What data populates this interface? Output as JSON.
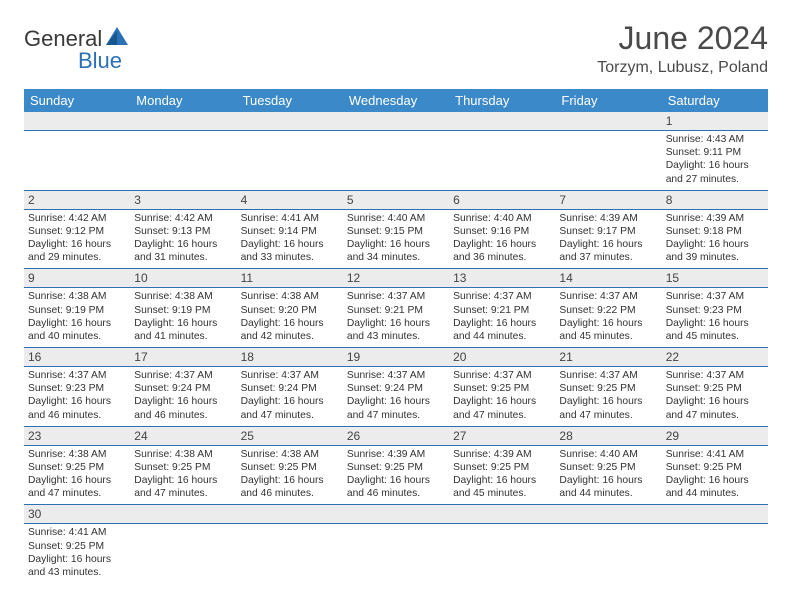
{
  "logo": {
    "part1": "General",
    "part2": "Blue"
  },
  "title": "June 2024",
  "location": "Torzym, Lubusz, Poland",
  "colors": {
    "header_bg": "#3b89c9",
    "header_text": "#ffffff",
    "daynum_bg": "#ececec",
    "row_divider": "#2a71b8",
    "accent": "#2a71b8",
    "text": "#333333"
  },
  "daynames": [
    "Sunday",
    "Monday",
    "Tuesday",
    "Wednesday",
    "Thursday",
    "Friday",
    "Saturday"
  ],
  "weeks": [
    [
      {
        "num": "",
        "lines": []
      },
      {
        "num": "",
        "lines": []
      },
      {
        "num": "",
        "lines": []
      },
      {
        "num": "",
        "lines": []
      },
      {
        "num": "",
        "lines": []
      },
      {
        "num": "",
        "lines": []
      },
      {
        "num": "1",
        "lines": [
          "Sunrise: 4:43 AM",
          "Sunset: 9:11 PM",
          "Daylight: 16 hours",
          "and 27 minutes."
        ]
      }
    ],
    [
      {
        "num": "2",
        "lines": [
          "Sunrise: 4:42 AM",
          "Sunset: 9:12 PM",
          "Daylight: 16 hours",
          "and 29 minutes."
        ]
      },
      {
        "num": "3",
        "lines": [
          "Sunrise: 4:42 AM",
          "Sunset: 9:13 PM",
          "Daylight: 16 hours",
          "and 31 minutes."
        ]
      },
      {
        "num": "4",
        "lines": [
          "Sunrise: 4:41 AM",
          "Sunset: 9:14 PM",
          "Daylight: 16 hours",
          "and 33 minutes."
        ]
      },
      {
        "num": "5",
        "lines": [
          "Sunrise: 4:40 AM",
          "Sunset: 9:15 PM",
          "Daylight: 16 hours",
          "and 34 minutes."
        ]
      },
      {
        "num": "6",
        "lines": [
          "Sunrise: 4:40 AM",
          "Sunset: 9:16 PM",
          "Daylight: 16 hours",
          "and 36 minutes."
        ]
      },
      {
        "num": "7",
        "lines": [
          "Sunrise: 4:39 AM",
          "Sunset: 9:17 PM",
          "Daylight: 16 hours",
          "and 37 minutes."
        ]
      },
      {
        "num": "8",
        "lines": [
          "Sunrise: 4:39 AM",
          "Sunset: 9:18 PM",
          "Daylight: 16 hours",
          "and 39 minutes."
        ]
      }
    ],
    [
      {
        "num": "9",
        "lines": [
          "Sunrise: 4:38 AM",
          "Sunset: 9:19 PM",
          "Daylight: 16 hours",
          "and 40 minutes."
        ]
      },
      {
        "num": "10",
        "lines": [
          "Sunrise: 4:38 AM",
          "Sunset: 9:19 PM",
          "Daylight: 16 hours",
          "and 41 minutes."
        ]
      },
      {
        "num": "11",
        "lines": [
          "Sunrise: 4:38 AM",
          "Sunset: 9:20 PM",
          "Daylight: 16 hours",
          "and 42 minutes."
        ]
      },
      {
        "num": "12",
        "lines": [
          "Sunrise: 4:37 AM",
          "Sunset: 9:21 PM",
          "Daylight: 16 hours",
          "and 43 minutes."
        ]
      },
      {
        "num": "13",
        "lines": [
          "Sunrise: 4:37 AM",
          "Sunset: 9:21 PM",
          "Daylight: 16 hours",
          "and 44 minutes."
        ]
      },
      {
        "num": "14",
        "lines": [
          "Sunrise: 4:37 AM",
          "Sunset: 9:22 PM",
          "Daylight: 16 hours",
          "and 45 minutes."
        ]
      },
      {
        "num": "15",
        "lines": [
          "Sunrise: 4:37 AM",
          "Sunset: 9:23 PM",
          "Daylight: 16 hours",
          "and 45 minutes."
        ]
      }
    ],
    [
      {
        "num": "16",
        "lines": [
          "Sunrise: 4:37 AM",
          "Sunset: 9:23 PM",
          "Daylight: 16 hours",
          "and 46 minutes."
        ]
      },
      {
        "num": "17",
        "lines": [
          "Sunrise: 4:37 AM",
          "Sunset: 9:24 PM",
          "Daylight: 16 hours",
          "and 46 minutes."
        ]
      },
      {
        "num": "18",
        "lines": [
          "Sunrise: 4:37 AM",
          "Sunset: 9:24 PM",
          "Daylight: 16 hours",
          "and 47 minutes."
        ]
      },
      {
        "num": "19",
        "lines": [
          "Sunrise: 4:37 AM",
          "Sunset: 9:24 PM",
          "Daylight: 16 hours",
          "and 47 minutes."
        ]
      },
      {
        "num": "20",
        "lines": [
          "Sunrise: 4:37 AM",
          "Sunset: 9:25 PM",
          "Daylight: 16 hours",
          "and 47 minutes."
        ]
      },
      {
        "num": "21",
        "lines": [
          "Sunrise: 4:37 AM",
          "Sunset: 9:25 PM",
          "Daylight: 16 hours",
          "and 47 minutes."
        ]
      },
      {
        "num": "22",
        "lines": [
          "Sunrise: 4:37 AM",
          "Sunset: 9:25 PM",
          "Daylight: 16 hours",
          "and 47 minutes."
        ]
      }
    ],
    [
      {
        "num": "23",
        "lines": [
          "Sunrise: 4:38 AM",
          "Sunset: 9:25 PM",
          "Daylight: 16 hours",
          "and 47 minutes."
        ]
      },
      {
        "num": "24",
        "lines": [
          "Sunrise: 4:38 AM",
          "Sunset: 9:25 PM",
          "Daylight: 16 hours",
          "and 47 minutes."
        ]
      },
      {
        "num": "25",
        "lines": [
          "Sunrise: 4:38 AM",
          "Sunset: 9:25 PM",
          "Daylight: 16 hours",
          "and 46 minutes."
        ]
      },
      {
        "num": "26",
        "lines": [
          "Sunrise: 4:39 AM",
          "Sunset: 9:25 PM",
          "Daylight: 16 hours",
          "and 46 minutes."
        ]
      },
      {
        "num": "27",
        "lines": [
          "Sunrise: 4:39 AM",
          "Sunset: 9:25 PM",
          "Daylight: 16 hours",
          "and 45 minutes."
        ]
      },
      {
        "num": "28",
        "lines": [
          "Sunrise: 4:40 AM",
          "Sunset: 9:25 PM",
          "Daylight: 16 hours",
          "and 44 minutes."
        ]
      },
      {
        "num": "29",
        "lines": [
          "Sunrise: 4:41 AM",
          "Sunset: 9:25 PM",
          "Daylight: 16 hours",
          "and 44 minutes."
        ]
      }
    ],
    [
      {
        "num": "30",
        "lines": [
          "Sunrise: 4:41 AM",
          "Sunset: 9:25 PM",
          "Daylight: 16 hours",
          "and 43 minutes."
        ]
      },
      {
        "num": "",
        "lines": []
      },
      {
        "num": "",
        "lines": []
      },
      {
        "num": "",
        "lines": []
      },
      {
        "num": "",
        "lines": []
      },
      {
        "num": "",
        "lines": []
      },
      {
        "num": "",
        "lines": []
      }
    ]
  ]
}
